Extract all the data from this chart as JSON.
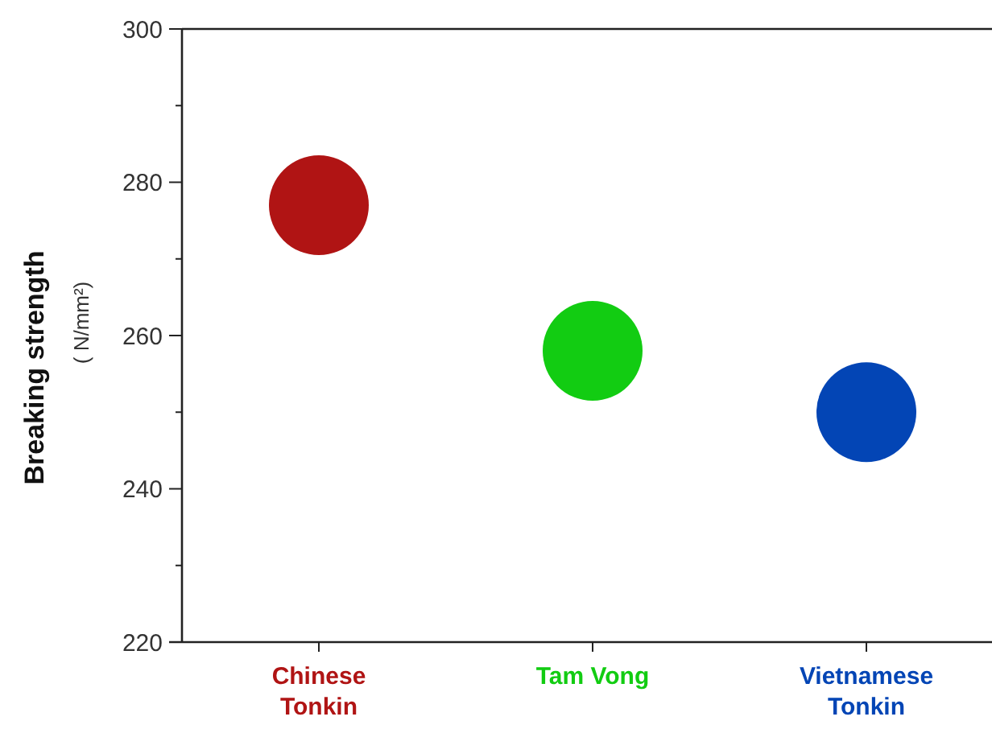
{
  "chart_data": {
    "type": "scatter",
    "ylabel": "Breaking strength ( N/mm²)",
    "categories": [
      "Chinese Tonkin",
      "Tam Vong",
      "Vietnamese Tonkin"
    ],
    "series": [
      {
        "values": [
          277,
          258,
          250
        ],
        "colors": [
          "#b01414",
          "#12cc12",
          "#0345b5"
        ]
      }
    ],
    "ylim": [
      220,
      300
    ],
    "yticks": [
      220,
      {
        "value": 230,
        "label": null
      },
      240,
      {
        "value": 250,
        "label": null
      },
      260,
      {
        "value": 270,
        "label": null
      },
      280,
      {
        "value": 290,
        "label": null
      },
      300
    ],
    "marker": "circle",
    "grid": false
  }
}
